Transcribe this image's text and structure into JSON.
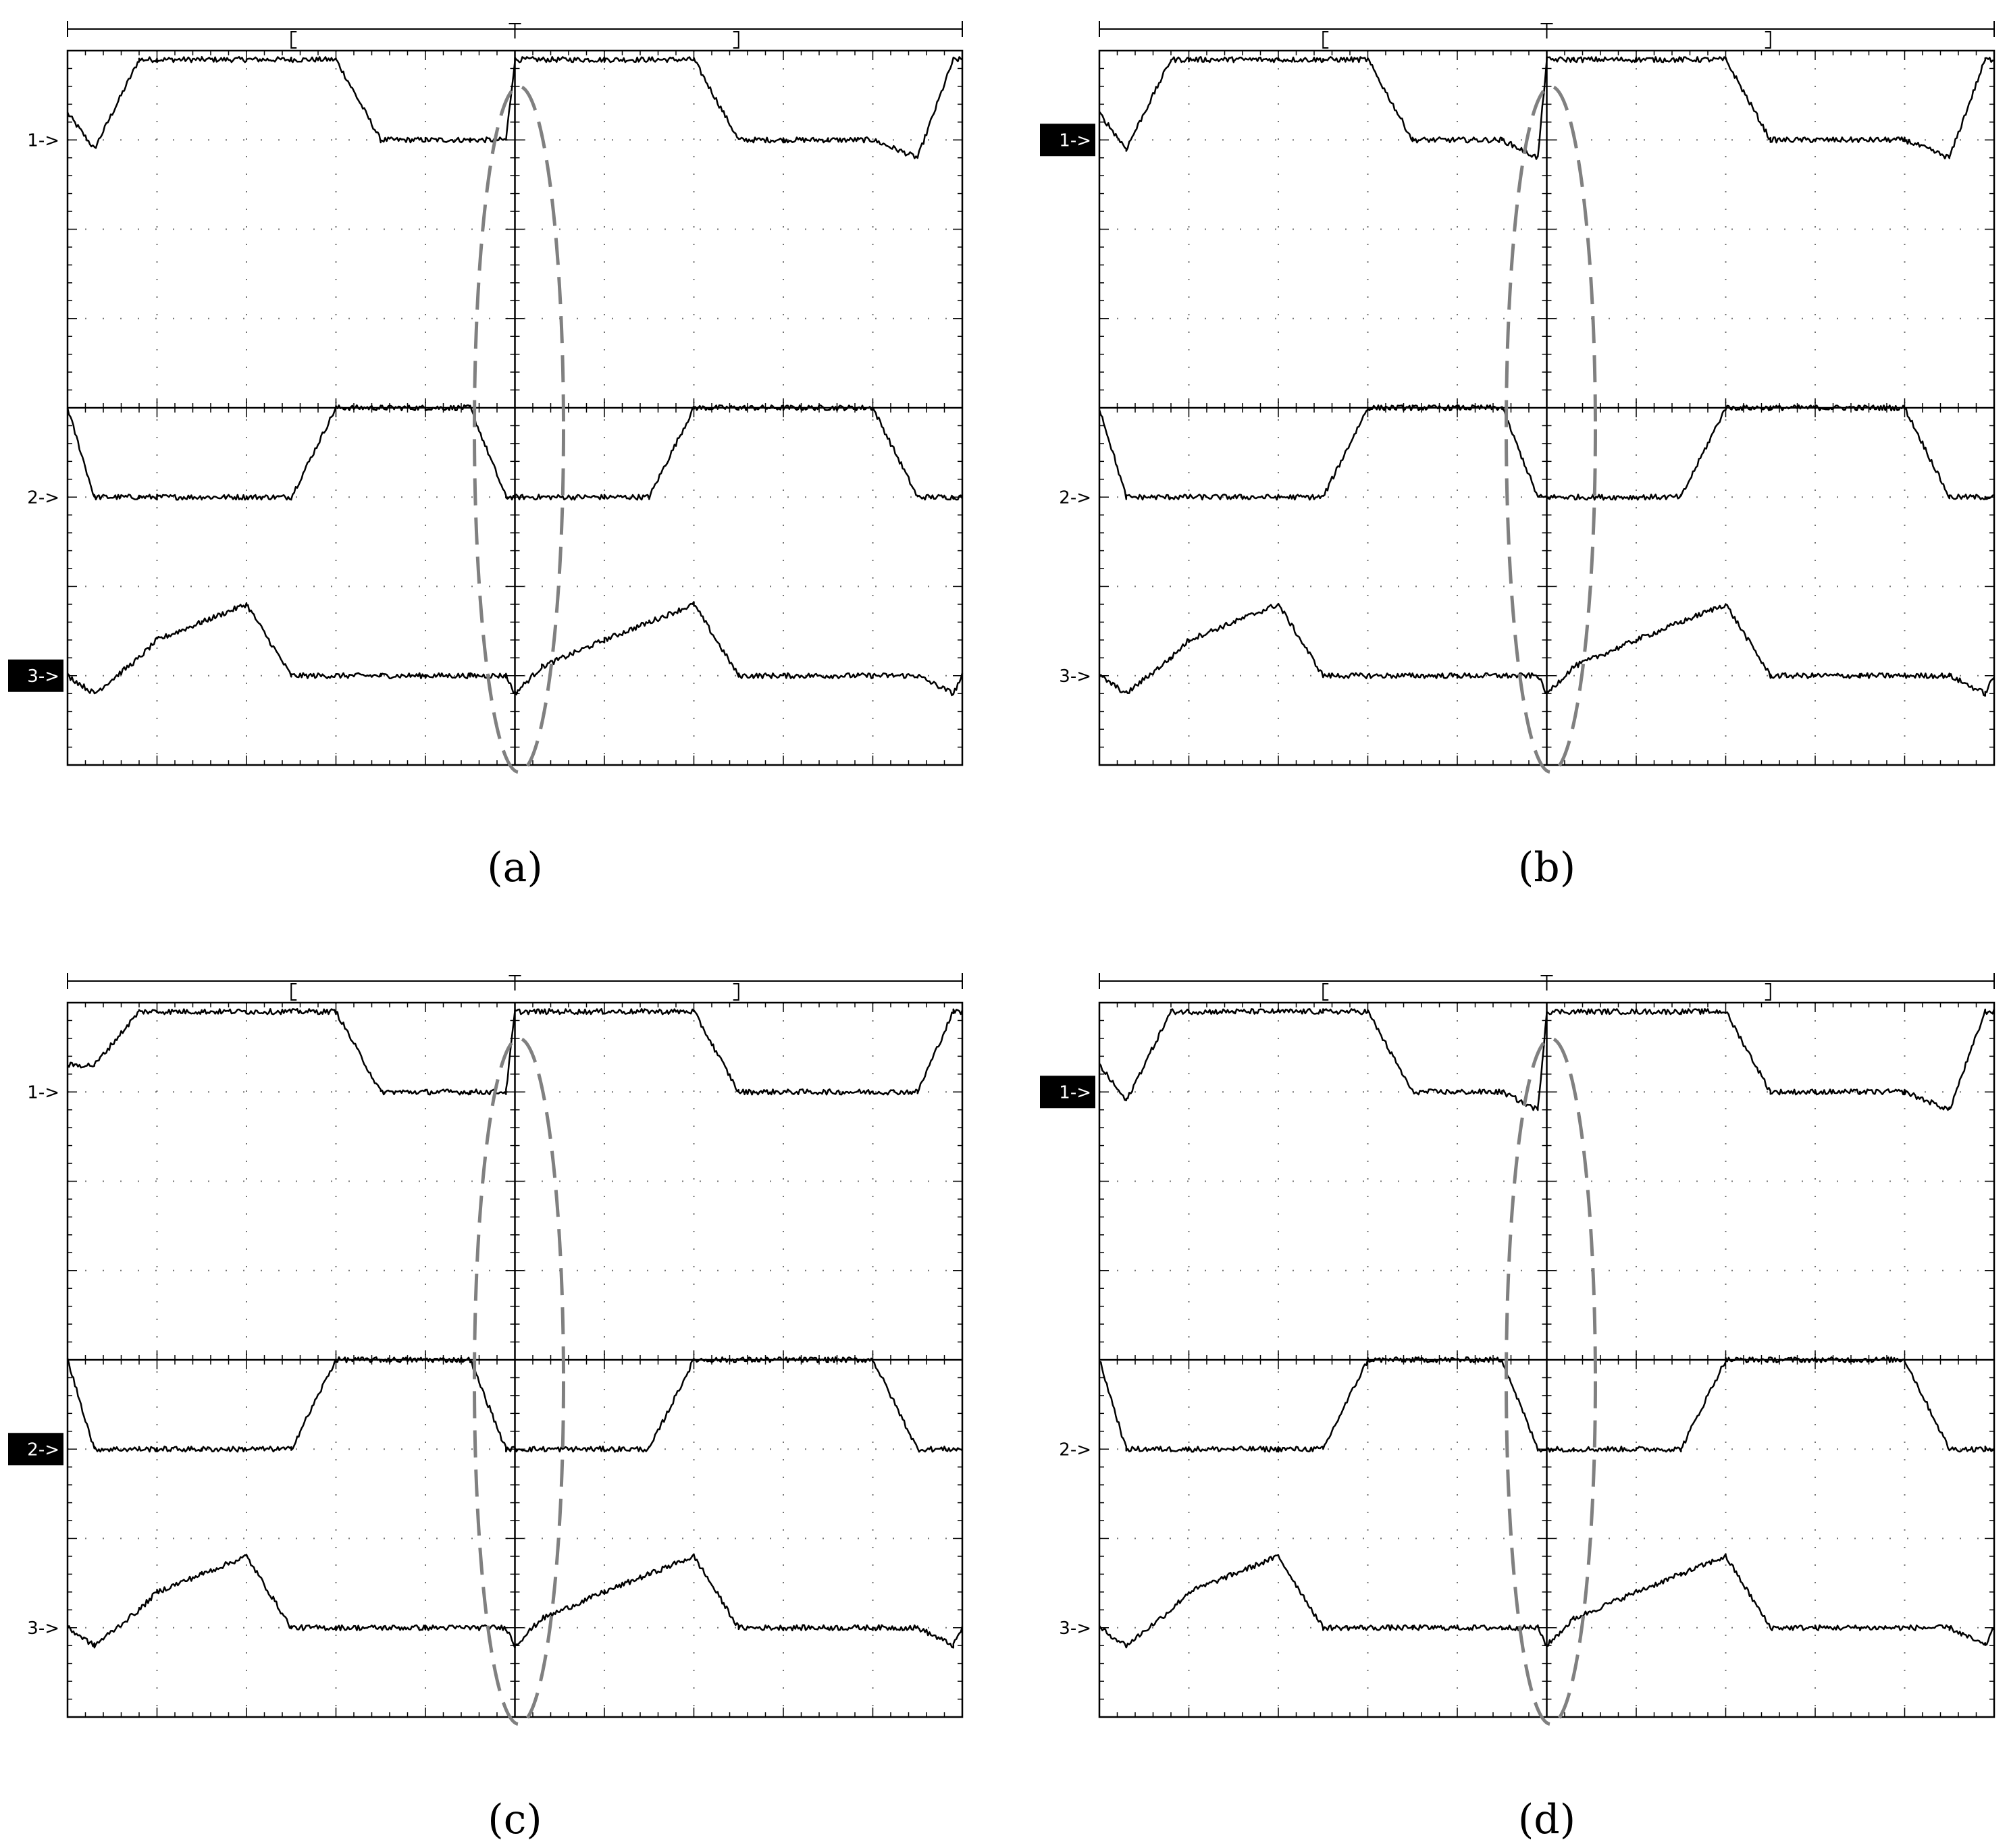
{
  "chart_data": [
    {
      "type": "line",
      "caption": "(a)",
      "channels": [
        {
          "label": "1->",
          "highlighted": false
        },
        {
          "label": "2->",
          "highlighted": false
        },
        {
          "label": "3->",
          "highlighted": true
        }
      ],
      "x": [
        0,
        0.3,
        0.8,
        1.0,
        1.5,
        2.0,
        2.5,
        3.0,
        3.5,
        4.0,
        4.5,
        4.9,
        5.0,
        5.3,
        6.0,
        6.5,
        7.0,
        7.5,
        8.0,
        8.5,
        9.0,
        9.5,
        9.9,
        10.0
      ],
      "series": [
        {
          "channel": 0,
          "values": [
            7.3,
            6.9,
            7.9,
            7.9,
            7.9,
            7.9,
            7.9,
            7.9,
            7.0,
            7.0,
            7.0,
            7.0,
            7.9,
            7.9,
            7.9,
            7.9,
            7.9,
            7.0,
            7.0,
            7.0,
            7.0,
            6.8,
            7.9,
            7.9
          ]
        },
        {
          "channel": 1,
          "values": [
            4.0,
            3.0,
            3.0,
            3.0,
            3.0,
            3.0,
            3.0,
            4.0,
            4.0,
            4.0,
            4.0,
            3.0,
            3.0,
            3.0,
            3.0,
            3.0,
            4.0,
            4.0,
            4.0,
            4.0,
            4.0,
            3.0,
            3.0,
            3.0
          ]
        },
        {
          "channel": 2,
          "values": [
            1.0,
            0.8,
            1.2,
            1.4,
            1.6,
            1.8,
            1.0,
            1.0,
            1.0,
            1.0,
            1.0,
            1.0,
            0.8,
            1.1,
            1.4,
            1.6,
            1.8,
            1.0,
            1.0,
            1.0,
            1.0,
            1.0,
            0.8,
            1.0
          ]
        }
      ]
    },
    {
      "type": "line",
      "caption": "(b)",
      "channels": [
        {
          "label": "1->",
          "highlighted": true
        },
        {
          "label": "2->",
          "highlighted": false
        },
        {
          "label": "3->",
          "highlighted": false
        }
      ],
      "x": [
        0,
        0.3,
        0.8,
        1.0,
        1.5,
        2.0,
        2.5,
        3.0,
        3.5,
        4.0,
        4.5,
        4.9,
        5.0,
        5.3,
        6.0,
        6.5,
        7.0,
        7.5,
        8.0,
        8.5,
        9.0,
        9.5,
        9.9,
        10.0
      ],
      "series": [
        {
          "channel": 0,
          "values": [
            7.3,
            6.9,
            7.9,
            7.9,
            7.9,
            7.9,
            7.9,
            7.9,
            7.0,
            7.0,
            7.0,
            6.8,
            7.9,
            7.9,
            7.9,
            7.9,
            7.9,
            7.0,
            7.0,
            7.0,
            7.0,
            6.8,
            7.9,
            7.9
          ]
        },
        {
          "channel": 1,
          "values": [
            4.0,
            3.0,
            3.0,
            3.0,
            3.0,
            3.0,
            3.0,
            4.0,
            4.0,
            4.0,
            4.0,
            3.0,
            3.0,
            3.0,
            3.0,
            3.0,
            4.0,
            4.0,
            4.0,
            4.0,
            4.0,
            3.0,
            3.0,
            3.0
          ]
        },
        {
          "channel": 2,
          "values": [
            1.0,
            0.8,
            1.2,
            1.4,
            1.6,
            1.8,
            1.0,
            1.0,
            1.0,
            1.0,
            1.0,
            1.0,
            0.8,
            1.1,
            1.4,
            1.6,
            1.8,
            1.0,
            1.0,
            1.0,
            1.0,
            1.0,
            0.8,
            1.0
          ]
        }
      ]
    },
    {
      "type": "line",
      "caption": "(c)",
      "channels": [
        {
          "label": "1->",
          "highlighted": false
        },
        {
          "label": "2->",
          "highlighted": true
        },
        {
          "label": "3->",
          "highlighted": false
        }
      ],
      "x": [
        0,
        0.3,
        0.8,
        1.0,
        1.5,
        2.0,
        2.5,
        3.0,
        3.5,
        4.0,
        4.5,
        4.9,
        5.0,
        5.3,
        6.0,
        6.5,
        7.0,
        7.5,
        8.0,
        8.5,
        9.0,
        9.5,
        9.9,
        10.0
      ],
      "series": [
        {
          "channel": 0,
          "values": [
            7.3,
            7.3,
            7.9,
            7.9,
            7.9,
            7.9,
            7.9,
            7.9,
            7.0,
            7.0,
            7.0,
            7.0,
            7.9,
            7.9,
            7.9,
            7.9,
            7.9,
            7.0,
            7.0,
            7.0,
            7.0,
            7.0,
            7.9,
            7.9
          ]
        },
        {
          "channel": 1,
          "values": [
            4.0,
            3.0,
            3.0,
            3.0,
            3.0,
            3.0,
            3.0,
            4.0,
            4.0,
            4.0,
            4.0,
            3.0,
            3.0,
            3.0,
            3.0,
            3.0,
            4.0,
            4.0,
            4.0,
            4.0,
            4.0,
            3.0,
            3.0,
            3.0
          ]
        },
        {
          "channel": 2,
          "values": [
            1.0,
            0.8,
            1.2,
            1.4,
            1.6,
            1.8,
            1.0,
            1.0,
            1.0,
            1.0,
            1.0,
            1.0,
            0.8,
            1.1,
            1.4,
            1.6,
            1.8,
            1.0,
            1.0,
            1.0,
            1.0,
            1.0,
            0.8,
            1.0
          ]
        }
      ]
    },
    {
      "type": "line",
      "caption": "(d)",
      "channels": [
        {
          "label": "1->",
          "highlighted": true
        },
        {
          "label": "2->",
          "highlighted": false
        },
        {
          "label": "3->",
          "highlighted": false
        }
      ],
      "x": [
        0,
        0.3,
        0.8,
        1.0,
        1.5,
        2.0,
        2.5,
        3.0,
        3.5,
        4.0,
        4.5,
        4.9,
        5.0,
        5.3,
        6.0,
        6.5,
        7.0,
        7.5,
        8.0,
        8.5,
        9.0,
        9.5,
        9.9,
        10.0
      ],
      "series": [
        {
          "channel": 0,
          "values": [
            7.3,
            6.9,
            7.9,
            7.9,
            7.9,
            7.9,
            7.9,
            7.9,
            7.0,
            7.0,
            7.0,
            6.8,
            7.9,
            7.9,
            7.9,
            7.9,
            7.9,
            7.0,
            7.0,
            7.0,
            7.0,
            6.8,
            7.9,
            7.9
          ]
        },
        {
          "channel": 1,
          "values": [
            4.0,
            3.0,
            3.0,
            3.0,
            3.0,
            3.0,
            3.0,
            4.0,
            4.0,
            4.0,
            4.0,
            3.0,
            3.0,
            3.0,
            3.0,
            3.0,
            4.0,
            4.0,
            4.0,
            4.0,
            4.0,
            3.0,
            3.0,
            3.0
          ]
        },
        {
          "channel": 2,
          "values": [
            1.0,
            0.8,
            1.2,
            1.4,
            1.6,
            1.8,
            1.0,
            1.0,
            1.0,
            1.0,
            1.0,
            1.0,
            0.8,
            1.1,
            1.4,
            1.6,
            1.8,
            1.0,
            1.0,
            1.0,
            1.0,
            1.0,
            0.8,
            1.0
          ]
        }
      ]
    }
  ],
  "shared": {
    "xlim": [
      0,
      10
    ],
    "ylim": [
      0,
      8
    ],
    "grid": true,
    "channel_levels": [
      7,
      3,
      1
    ],
    "marker_window": [
      2.5,
      7.5
    ],
    "highlight_ellipse_center_x": 5.0,
    "colors": {
      "trace": "#000000",
      "grid": "#000000",
      "ellipse": "#808080",
      "label_highlight_bg": "#000000",
      "label_highlight_fg": "#ffffff"
    }
  }
}
